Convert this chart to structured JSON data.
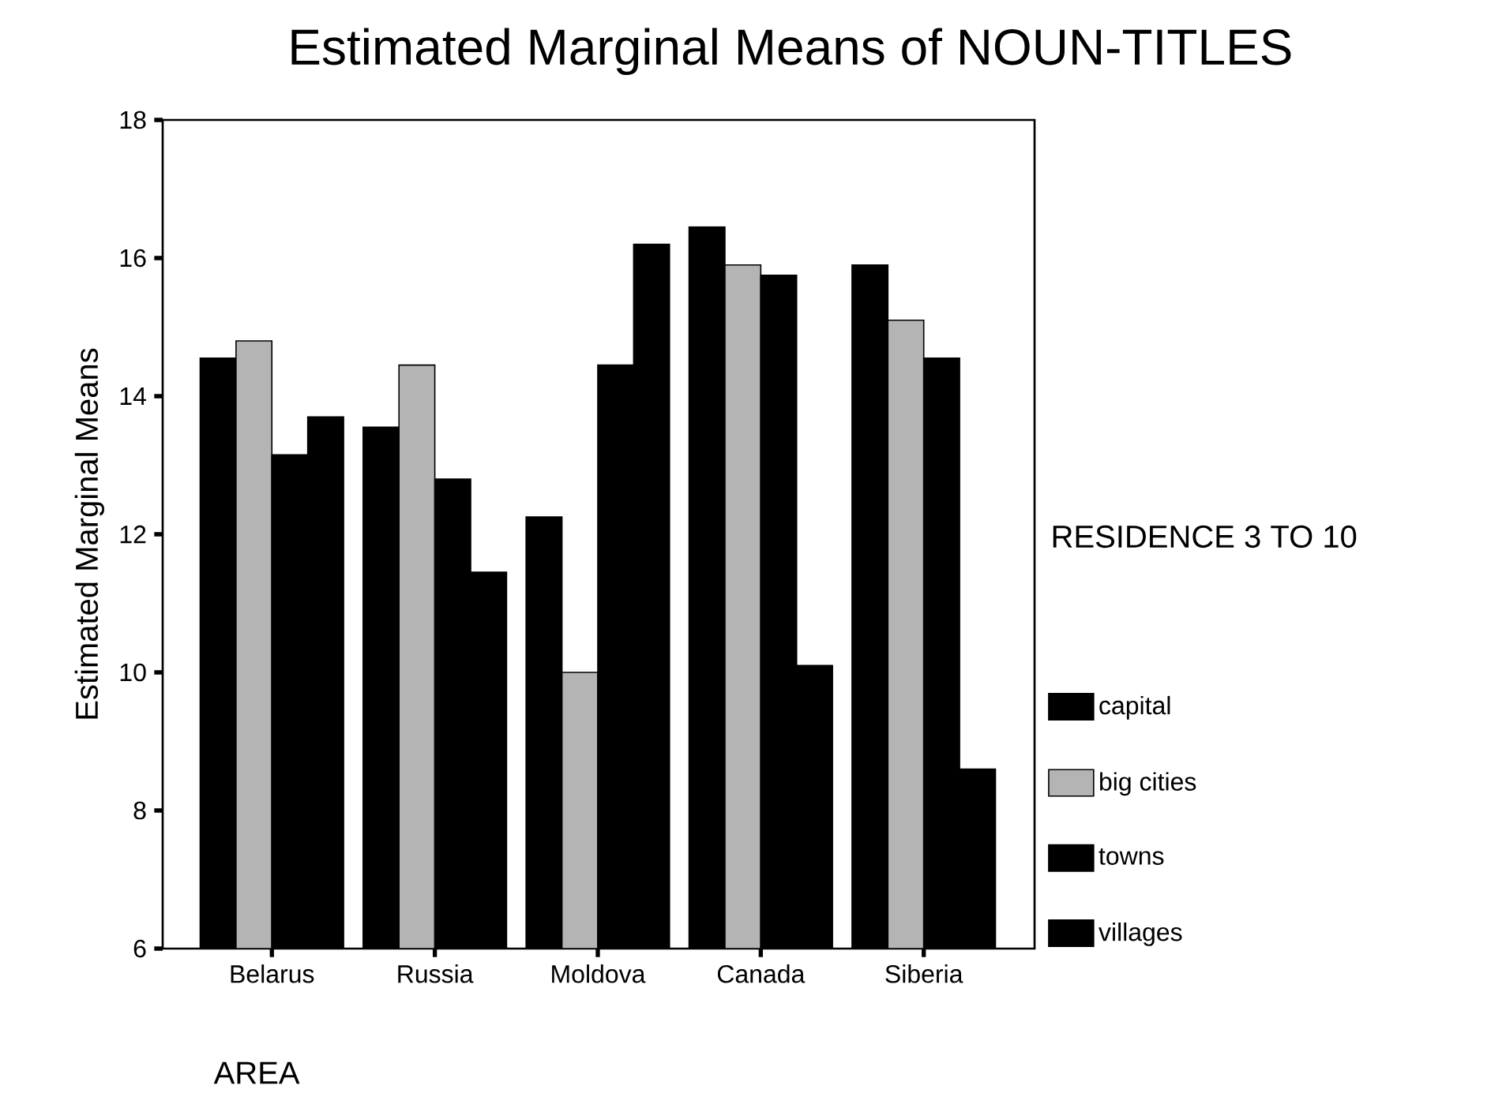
{
  "chart_data": {
    "type": "bar",
    "title": "Estimated Marginal Means of NOUN-TITLES",
    "xlabel": "AREA",
    "ylabel": "Estimated Marginal Means",
    "legend_title": "RESIDENCE 3 TO 10",
    "categories": [
      "Belarus",
      "Russia",
      "Moldova",
      "Canada",
      "Siberia"
    ],
    "series": [
      {
        "name": "capital",
        "color": "#000000",
        "values": [
          14.55,
          13.55,
          12.25,
          16.45,
          15.9
        ]
      },
      {
        "name": "big cities",
        "color": "#b4b4b4",
        "values": [
          14.8,
          14.45,
          10.0,
          15.9,
          15.1
        ]
      },
      {
        "name": "towns",
        "color": "#000000",
        "values": [
          13.15,
          12.8,
          14.45,
          15.75,
          14.55
        ]
      },
      {
        "name": "villages",
        "color": "#000000",
        "values": [
          13.7,
          11.45,
          16.2,
          10.1,
          8.6
        ]
      }
    ],
    "ylim": [
      6,
      18
    ],
    "yticks": [
      6,
      8,
      10,
      12,
      14,
      16,
      18
    ],
    "grid": false,
    "legend": "right"
  }
}
